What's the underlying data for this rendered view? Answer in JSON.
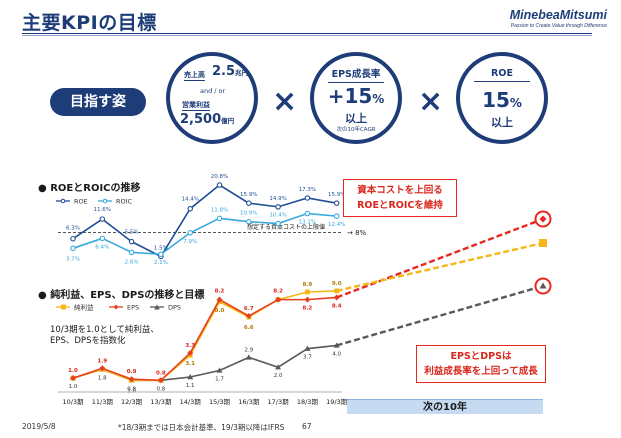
{
  "header": {
    "title": "主要KPIの目標",
    "logo_name": "MinebeaMitsumi",
    "logo_tagline": "Passion to Create Value through Difference"
  },
  "goals": {
    "label": "目指す姿",
    "times": "×",
    "kpi1": {
      "sales_label": "売上高",
      "sales_value": "2.5",
      "sales_unit": "兆円",
      "and_or": "and / or",
      "op_label": "営業利益",
      "op_value": "2,500",
      "op_unit": "億円"
    },
    "kpi2": {
      "head": "EPS成長率",
      "value": "+15",
      "value_unit": "%",
      "qualifier": "以上",
      "note": "次の10年CAGR"
    },
    "kpi3": {
      "head": "ROE",
      "value": "15",
      "value_unit": "%",
      "qualifier": "以上"
    }
  },
  "roe_section": {
    "title": "● ROEとROICの推移"
  },
  "eps_section": {
    "title": "● 純利益、EPS、DPSの推移と目標"
  },
  "callouts": {
    "roe_box_line1": "資本コストを上回る",
    "roe_box_line2": "ROEとROICを維持",
    "eps_box_line1": "EPSとDPSは",
    "eps_box_line2": "利益成長率を上回って成長",
    "decade": "次の10年",
    "index_note_line1": "10/3期を1.0として純利益、",
    "index_note_line2": "EPS、DPSを指数化"
  },
  "footer": {
    "date": "2019/5/8",
    "note": "*18/3期までは日本会計基準、19/3期以降はIFRS",
    "page": "67"
  },
  "colors": {
    "navy": "#1d3c78",
    "roe": "#1f4e96",
    "roic": "#35a9dc",
    "net_income": "#f6b716",
    "eps": "#e8401e",
    "dps": "#595959",
    "red_accent": "#e8281e"
  },
  "chart_data": [
    {
      "type": "line",
      "title": "ROEとROICの推移",
      "categories": [
        "10/3期",
        "11/3期",
        "12/3期",
        "13/3期",
        "14/3期",
        "15/3期",
        "16/3期",
        "17/3期",
        "18/3期",
        "19/3期"
      ],
      "series": [
        {
          "name": "ROE",
          "values": [
            6.3,
            11.6,
            5.5,
            1.5,
            14.4,
            20.8,
            15.9,
            14.9,
            17.3,
            15.9
          ],
          "labels": [
            "6.3%",
            "11.6%",
            "5.5%",
            "1.5%",
            "14.4%",
            "20.8%",
            "15.9%",
            "14.9%",
            "17.3%",
            "15.9%"
          ]
        },
        {
          "name": "ROIC",
          "values": [
            3.7,
            6.4,
            2.6,
            2.1,
            7.9,
            11.8,
            10.9,
            10.4,
            13.1,
            12.4
          ],
          "labels": [
            "3.7%",
            "6.4%",
            "2.6%",
            "2.1%",
            "7.9%",
            "11.8%",
            "10.9%",
            "10.4%",
            "13.1%",
            "12.4%"
          ]
        }
      ],
      "threshold": {
        "value": 8,
        "label": "8%",
        "note": "想定する資本コストの上限値"
      },
      "ylim": [
        0,
        22
      ]
    },
    {
      "type": "line",
      "title": "純利益、EPS、DPSの推移と目標",
      "categories": [
        "10/3期",
        "11/3期",
        "12/3期",
        "13/3期",
        "14/3期",
        "15/3期",
        "16/3期",
        "17/3期",
        "18/3期",
        "19/3期"
      ],
      "series": [
        {
          "name": "純利益",
          "values": [
            1.0,
            1.8,
            0.8,
            0.8,
            3.1,
            8.0,
            6.6,
            8.2,
            8.9,
            9.0
          ],
          "labels": [
            "",
            "",
            "",
            "",
            "",
            "8.0",
            "",
            "",
            "8.9",
            "9.0"
          ]
        },
        {
          "name": "EPS",
          "values": [
            1.0,
            1.9,
            0.9,
            0.8,
            3.3,
            8.2,
            6.7,
            8.2,
            8.2,
            8.4
          ],
          "labels": [
            "1.0",
            "1.9",
            "0.9",
            "0.8",
            "3.3",
            "8.2",
            "6.7",
            "8.2",
            "8.2",
            "8.4"
          ]
        },
        {
          "name": "DPS",
          "values": [
            1.0,
            1.8,
            0.8,
            0.8,
            1.1,
            1.7,
            2.9,
            2.0,
            3.7,
            4.0
          ],
          "labels": [
            "",
            "1.8",
            "0.8",
            "0.8",
            "1.1",
            "1.7",
            "2.9",
            "2.0",
            "3.7",
            "4.0"
          ]
        }
      ],
      "extra_labels": {
        "ni_13_14": "3.1",
        "ni_15": "6.6",
        "dps_10": "1.0",
        "dps_12": "1.0"
      },
      "ylim": [
        0,
        10
      ]
    }
  ]
}
